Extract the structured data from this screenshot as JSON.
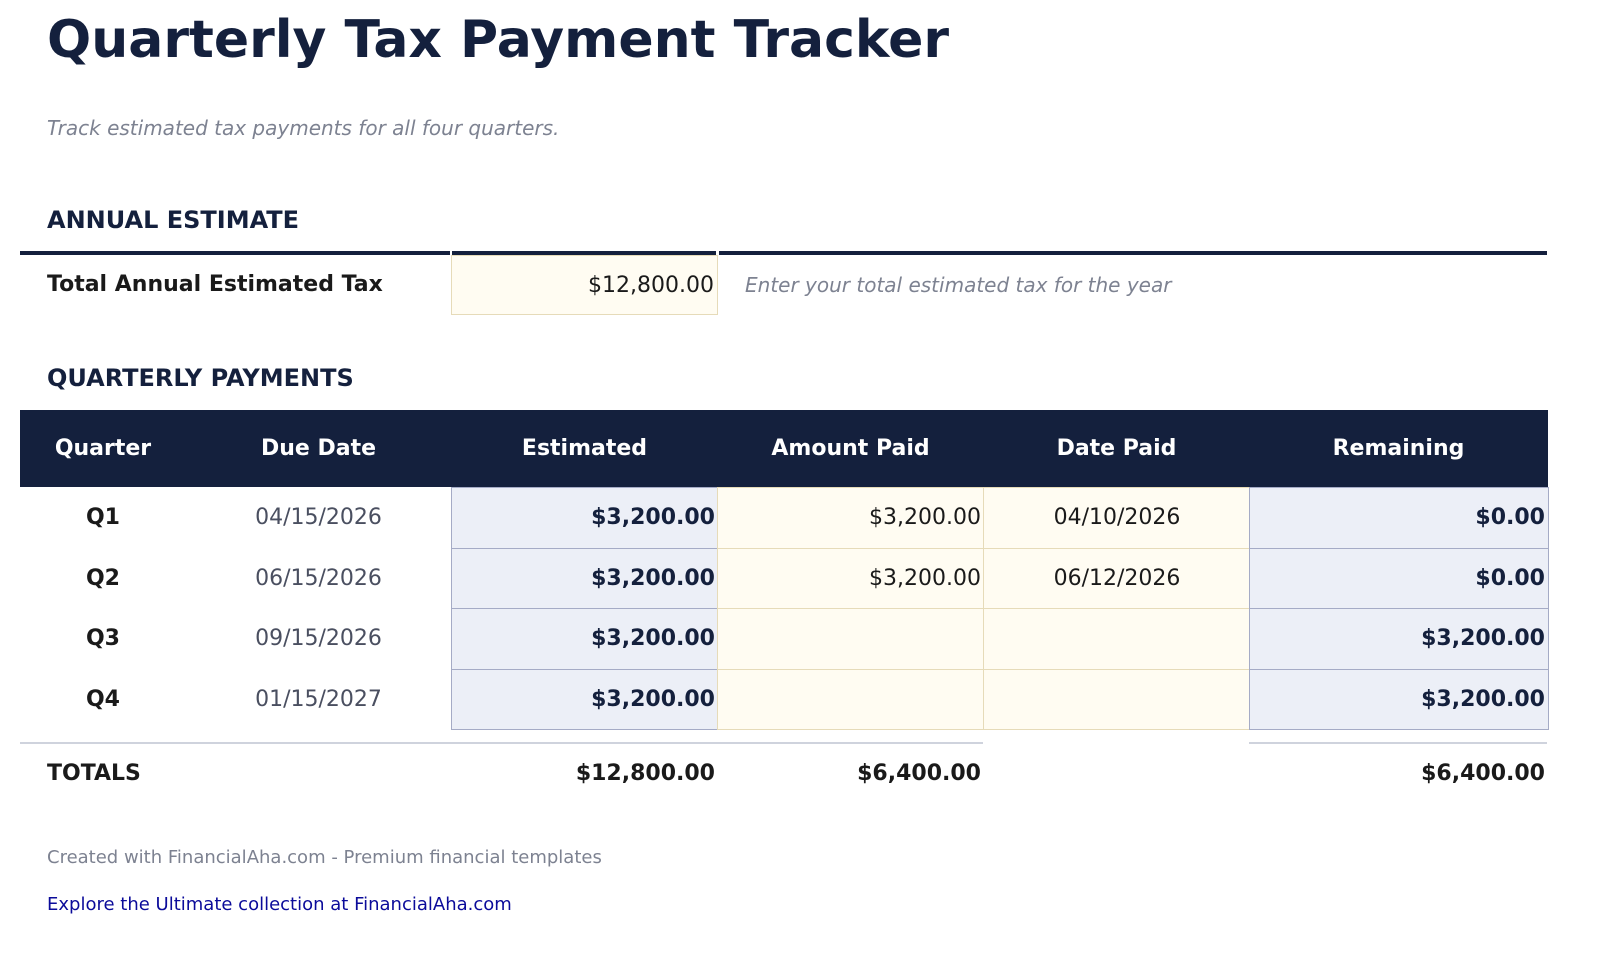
{
  "title": "Quarterly Tax Payment Tracker",
  "subtitle": "Track estimated tax payments for all four quarters.",
  "annual": {
    "heading": "ANNUAL ESTIMATE",
    "label": "Total Annual Estimated Tax",
    "value": "$12,800.00",
    "hint": "Enter your total estimated tax for the year"
  },
  "quarterly": {
    "heading": "QUARTERLY PAYMENTS",
    "columns": [
      "Quarter",
      "Due Date",
      "Estimated",
      "Amount Paid",
      "Date Paid",
      "Remaining"
    ],
    "rows": [
      [
        "Q1",
        "04/15/2026",
        "$3,200.00",
        "$3,200.00",
        "04/10/2026",
        "$0.00"
      ],
      [
        "Q2",
        "06/15/2026",
        "$3,200.00",
        "$3,200.00",
        "06/12/2026",
        "$0.00"
      ],
      [
        "Q3",
        "09/15/2026",
        "$3,200.00",
        "",
        "",
        "$3,200.00"
      ],
      [
        "Q4",
        "01/15/2027",
        "$3,200.00",
        "",
        "",
        "$3,200.00"
      ]
    ],
    "totals": {
      "label": "TOTALS",
      "estimated": "$12,800.00",
      "paid": "$6,400.00",
      "remaining": "$6,400.00"
    }
  },
  "footer": {
    "credit": "Created with FinancialAha.com - Premium financial templates",
    "link": "Explore the Ultimate collection at FinancialAha.com"
  },
  "colors": {
    "navy": "#14203d",
    "input_bg": "#fffcf2",
    "calc_bg": "#eceff7"
  }
}
